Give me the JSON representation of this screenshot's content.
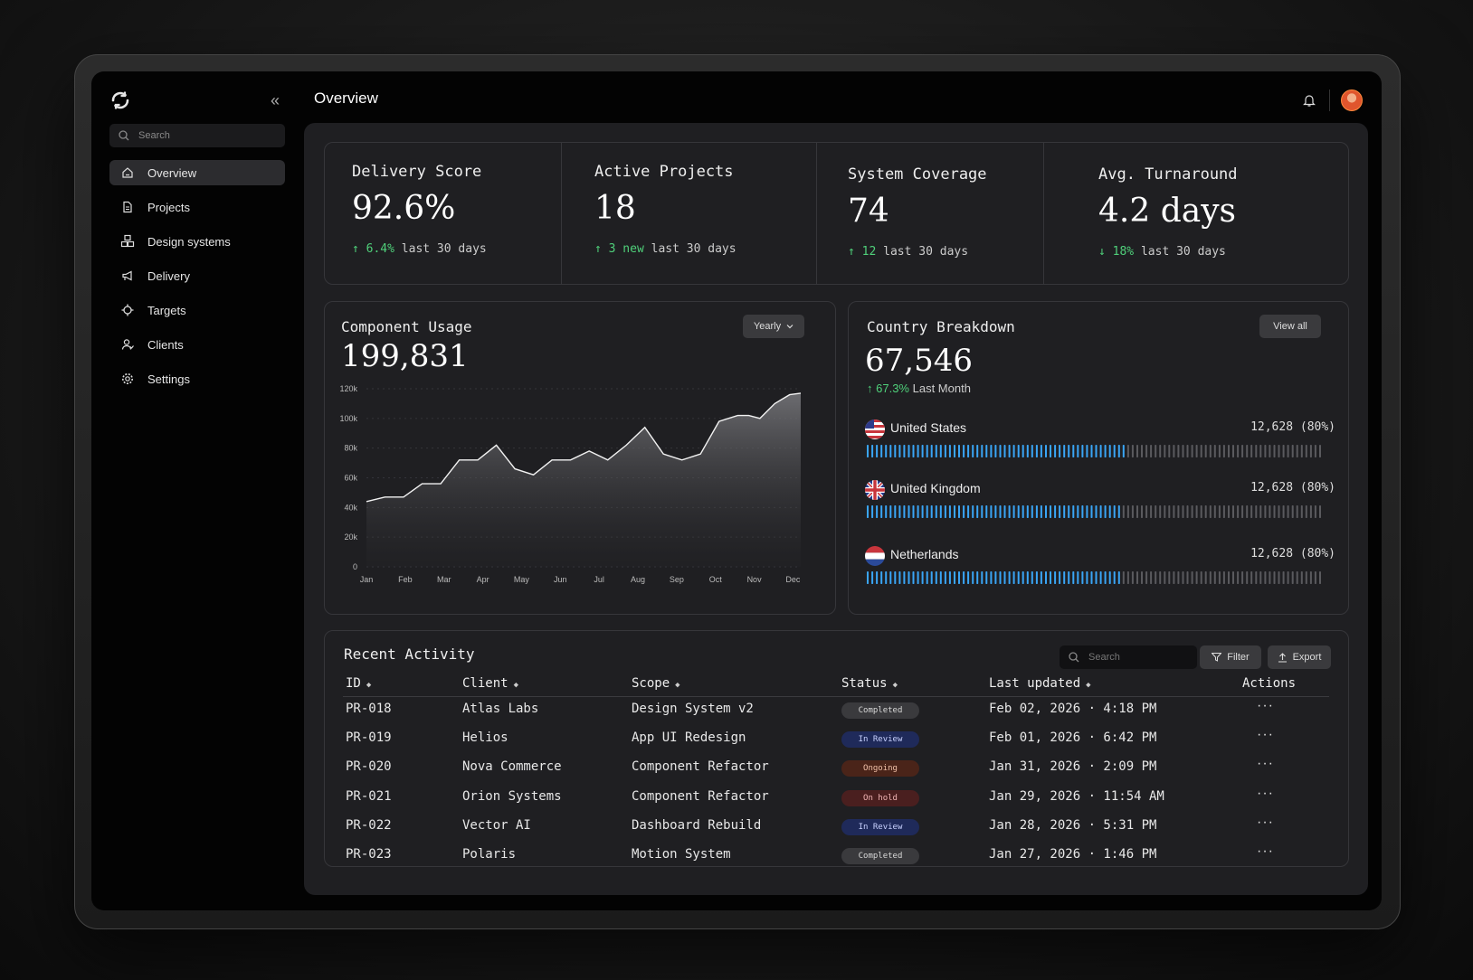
{
  "app": {
    "page_title": "Overview"
  },
  "sidebar": {
    "search_placeholder": "Search",
    "items": [
      {
        "label": "Overview",
        "icon": "home-icon",
        "active": true
      },
      {
        "label": "Projects",
        "icon": "file-icon"
      },
      {
        "label": "Design systems",
        "icon": "cubes-icon"
      },
      {
        "label": "Delivery",
        "icon": "megaphone-icon"
      },
      {
        "label": "Targets",
        "icon": "crosshair-icon"
      },
      {
        "label": "Clients",
        "icon": "users-icon"
      },
      {
        "label": "Settings",
        "icon": "gear-icon"
      }
    ]
  },
  "stats": [
    {
      "label": "Delivery Score",
      "value": "92.6%",
      "delta": "6.4%",
      "direction": "up",
      "period": "last 30 days"
    },
    {
      "label": "Active Projects",
      "value": "18",
      "delta": "3 new",
      "direction": "up",
      "period": "last 30 days"
    },
    {
      "label": "System Coverage",
      "value": "74",
      "delta": "12",
      "direction": "up",
      "period": "last 30 days"
    },
    {
      "label": "Avg. Turnaround",
      "value": "4.2 days",
      "delta": "18%",
      "direction": "down",
      "period": "last 30 days"
    }
  ],
  "usage": {
    "title": "Component Usage",
    "total": "199,831",
    "range_button": "Yearly"
  },
  "chart_data": {
    "type": "area",
    "title": "Component Usage",
    "x": [
      0,
      0.5,
      1,
      1.5,
      2,
      2.5,
      3,
      3.5,
      4,
      4.5,
      5,
      5.5,
      6,
      6.5,
      7,
      7.5,
      8,
      8.5,
      9,
      9.5,
      10,
      10.3,
      10.6,
      11,
      11.4,
      11.7
    ],
    "tick_labels": [
      "Jan",
      "Feb",
      "Mar",
      "Apr",
      "May",
      "Jun",
      "Jul",
      "Aug",
      "Sep",
      "Oct",
      "Nov",
      "Dec"
    ],
    "values": [
      44000,
      47000,
      47000,
      56000,
      56000,
      72000,
      72000,
      82000,
      66000,
      62000,
      72000,
      72000,
      78000,
      72000,
      82000,
      94000,
      76000,
      72000,
      76000,
      98000,
      102000,
      102000,
      100000,
      110000,
      116000,
      117000
    ],
    "y_ticks": [
      "0",
      "20k",
      "40k",
      "60k",
      "80k",
      "100k",
      "120k"
    ],
    "ylim": [
      0,
      120000
    ],
    "xlabel": "",
    "ylabel": "",
    "grid": true
  },
  "countries": {
    "title": "Country Breakdown",
    "total": "67,546",
    "delta": "67.3%",
    "period": "Last Month",
    "view_all": "View all",
    "rows": [
      {
        "name": "United States",
        "value": "12,628 (80%)",
        "flag": "us",
        "fill": 0.57
      },
      {
        "name": "United Kingdom",
        "value": "12,628 (80%)",
        "flag": "uk",
        "fill": 0.56
      },
      {
        "name": "Netherlands",
        "value": "12,628 (80%)",
        "flag": "nl",
        "fill": 0.56
      }
    ]
  },
  "activity": {
    "title": "Recent Activity",
    "search_placeholder": "Search",
    "filter_label": "Filter",
    "export_label": "Export",
    "columns": [
      "ID",
      "Client",
      "Scope",
      "Status",
      "Last updated",
      "Actions"
    ],
    "rows": [
      {
        "id": "PR-018",
        "client": "Atlas Labs",
        "scope": "Design System v2",
        "status": "Completed",
        "updated": "Feb 02, 2026 · 4:18 PM"
      },
      {
        "id": "PR-019",
        "client": "Helios",
        "scope": "App UI Redesign",
        "status": "In Review",
        "updated": "Feb 01, 2026 · 6:42 PM"
      },
      {
        "id": "PR-020",
        "client": "Nova Commerce",
        "scope": "Component Refactor",
        "status": "Ongoing",
        "updated": "Jan 31, 2026 · 2:09 PM"
      },
      {
        "id": "PR-021",
        "client": "Orion Systems",
        "scope": "Component Refactor",
        "status": "On hold",
        "updated": "Jan 29, 2026 · 11:54 AM"
      },
      {
        "id": "PR-022",
        "client": "Vector AI",
        "scope": "Dashboard Rebuild",
        "status": "In Review",
        "updated": "Jan 28, 2026 · 5:31 PM"
      },
      {
        "id": "PR-023",
        "client": "Polaris",
        "scope": "Motion System",
        "status": "Completed",
        "updated": "Jan 27, 2026 · 1:46 PM"
      }
    ],
    "actions_glyph": "···"
  },
  "colors": {
    "accent_blue": "#3aa5f5",
    "positive": "#4fd07a",
    "completed_bg": "#3a3a3d",
    "review_bg": "#1f2a5a",
    "ongoing_bg": "#4a2419",
    "hold_bg": "#4a1f1f"
  }
}
